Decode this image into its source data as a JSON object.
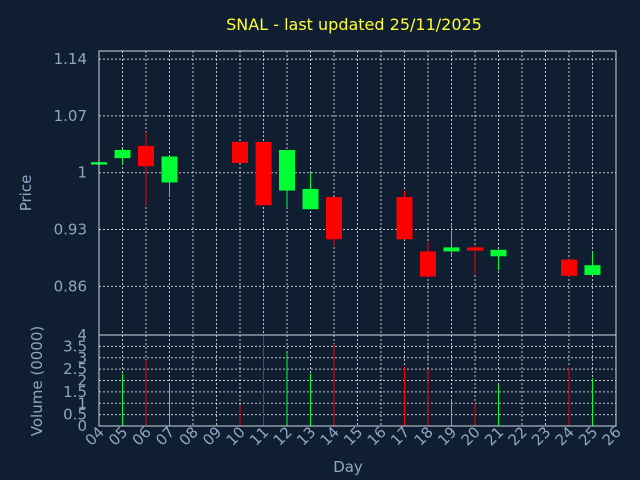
{
  "chart_data": [
    {
      "type": "candlestick",
      "title": "SNAL - last updated 25/11/2025",
      "xlabel": "Day",
      "ylabel": "Price",
      "ylim": [
        0.8,
        1.15
      ],
      "yticks": [
        "1.14",
        "1.07",
        "1",
        "0.93",
        "0.86"
      ],
      "ytick_values": [
        1.14,
        1.07,
        1.0,
        0.93,
        0.86
      ],
      "xticks": [
        "04",
        "05",
        "06",
        "07",
        "08",
        "09",
        "10",
        "11",
        "12",
        "13",
        "14",
        "15",
        "16",
        "17",
        "18",
        "19",
        "20",
        "21",
        "22",
        "23",
        "24",
        "25",
        "26"
      ],
      "grid": true,
      "up_color": "#00ff33",
      "down_color": "#ff0000",
      "candles": [
        {
          "day": "04",
          "open": 1.01,
          "high": 1.013,
          "low": 1.009,
          "close": 1.013
        },
        {
          "day": "05",
          "open": 1.018,
          "high": 1.03,
          "low": 1.01,
          "close": 1.028
        },
        {
          "day": "06",
          "open": 1.033,
          "high": 1.05,
          "low": 0.96,
          "close": 1.008
        },
        {
          "day": "07",
          "open": 0.988,
          "high": 1.02,
          "low": 0.97,
          "close": 1.02
        },
        {
          "day": "10",
          "open": 1.038,
          "high": 1.038,
          "low": 1.012,
          "close": 1.012
        },
        {
          "day": "11",
          "open": 1.038,
          "high": 1.038,
          "low": 0.96,
          "close": 0.96
        },
        {
          "day": "12",
          "open": 0.978,
          "high": 1.028,
          "low": 0.958,
          "close": 1.028
        },
        {
          "day": "13",
          "open": 0.955,
          "high": 1.0,
          "low": 0.955,
          "close": 0.98
        },
        {
          "day": "14",
          "open": 0.97,
          "high": 0.97,
          "low": 0.91,
          "close": 0.918
        },
        {
          "day": "17",
          "open": 0.97,
          "high": 0.978,
          "low": 0.918,
          "close": 0.918
        },
        {
          "day": "18",
          "open": 0.903,
          "high": 0.915,
          "low": 0.872,
          "close": 0.872
        },
        {
          "day": "19",
          "open": 0.903,
          "high": 0.935,
          "low": 0.897,
          "close": 0.908
        },
        {
          "day": "20",
          "open": 0.908,
          "high": 0.91,
          "low": 0.875,
          "close": 0.904
        },
        {
          "day": "21",
          "open": 0.897,
          "high": 0.905,
          "low": 0.88,
          "close": 0.905
        },
        {
          "day": "24",
          "open": 0.893,
          "high": 0.893,
          "low": 0.872,
          "close": 0.873
        },
        {
          "day": "25",
          "open": 0.874,
          "high": 0.902,
          "low": 0.874,
          "close": 0.886
        }
      ]
    },
    {
      "type": "bar",
      "ylabel": "Volume (0000)",
      "ylim": [
        0,
        4
      ],
      "yticks": [
        "4",
        "3.5",
        "3",
        "2.5",
        "2",
        "1.5",
        "1",
        "0.5",
        "0"
      ],
      "ytick_values": [
        4,
        3.5,
        3,
        2.5,
        2,
        1.5,
        1,
        0.5,
        0
      ],
      "bars": [
        {
          "day": "05",
          "value": 2.3,
          "color": "#00ff33"
        },
        {
          "day": "06",
          "value": 2.9,
          "color": "#ff0000"
        },
        {
          "day": "07",
          "value": 1.9,
          "color": "#00ff33"
        },
        {
          "day": "10",
          "value": 0.9,
          "color": "#ff0000"
        },
        {
          "day": "11",
          "value": 4.0,
          "color": "#ff0000"
        },
        {
          "day": "12",
          "value": 3.2,
          "color": "#00ff33"
        },
        {
          "day": "13",
          "value": 2.3,
          "color": "#00ff33"
        },
        {
          "day": "14",
          "value": 3.6,
          "color": "#ff0000"
        },
        {
          "day": "17",
          "value": 2.6,
          "color": "#ff0000"
        },
        {
          "day": "18",
          "value": 2.5,
          "color": "#ff0000"
        },
        {
          "day": "19",
          "value": 1.2,
          "color": "#00ff33"
        },
        {
          "day": "20",
          "value": 1.0,
          "color": "#ff0000"
        },
        {
          "day": "21",
          "value": 1.8,
          "color": "#00ff33"
        },
        {
          "day": "24",
          "value": 2.6,
          "color": "#ff0000"
        },
        {
          "day": "25",
          "value": 2.1,
          "color": "#00ff33"
        }
      ]
    }
  ]
}
